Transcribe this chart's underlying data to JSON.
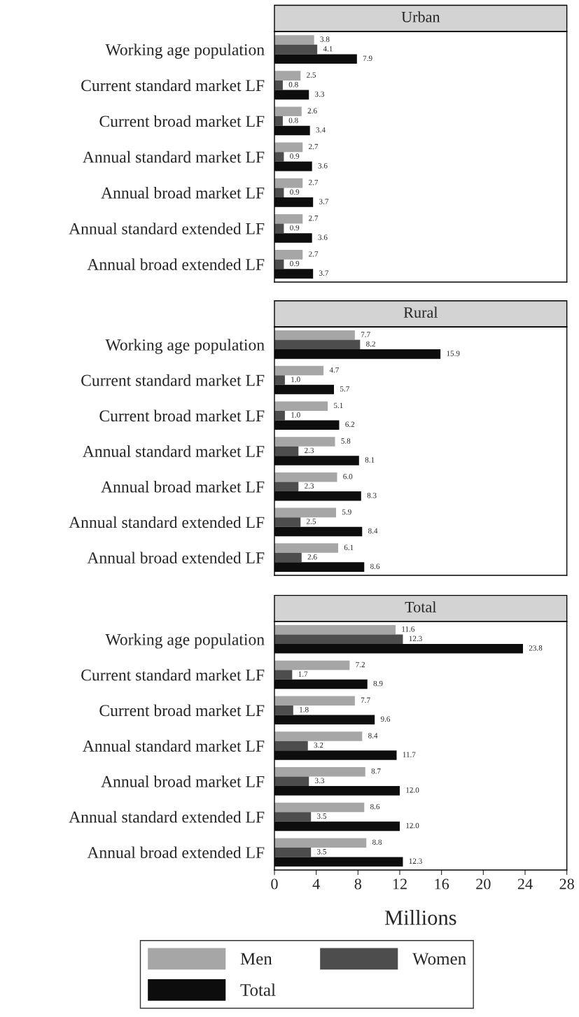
{
  "chart_data": [
    {
      "type": "bar",
      "orientation": "horizontal",
      "title": "Urban",
      "categories": [
        "Working age population",
        "Current standard market LF",
        "Current broad market LF",
        "Annual standard market LF",
        "Annual broad market LF",
        "Annual standard extended LF",
        "Annual broad extended LF"
      ],
      "series": [
        {
          "color": "#a6a6a6",
          "values": [
            3.8,
            2.5,
            2.6,
            2.7,
            2.7,
            2.7,
            2.7
          ],
          "value_labels": [
            "3.8",
            "2.5",
            "2.6",
            "2.7",
            "2.7",
            "2.7",
            "2.7"
          ]
        },
        {
          "color": "#4d4d4d",
          "values": [
            4.1,
            0.8,
            0.8,
            0.9,
            0.9,
            0.9,
            0.9
          ],
          "value_labels": [
            "4.1",
            "0.8",
            "0.8",
            "0.9",
            "0.9",
            "0.9",
            "0.9"
          ]
        },
        {
          "color": "#0d0d0d",
          "values": [
            7.9,
            3.3,
            3.4,
            3.6,
            3.7,
            3.6,
            3.7
          ],
          "value_labels": [
            "7.9",
            "3.3",
            "3.4",
            "3.6",
            "3.7",
            "3.6",
            "3.7"
          ]
        }
      ],
      "xlim": [
        0,
        28
      ],
      "tick_labels": "y"
    },
    {
      "type": "bar",
      "orientation": "horizontal",
      "title": "Rural",
      "categories": [
        "Working age population",
        "Current standard market LF",
        "Current broad market LF",
        "Annual standard market LF",
        "Annual broad market LF",
        "Annual standard extended LF",
        "Annual broad extended LF"
      ],
      "series": [
        {
          "color": "#a6a6a6",
          "values": [
            7.7,
            4.7,
            5.1,
            5.8,
            6.0,
            5.9,
            6.1
          ],
          "value_labels": [
            "7.7",
            "4.7",
            "5.1",
            "5.8",
            "6.0",
            "5.9",
            "6.1"
          ]
        },
        {
          "color": "#4d4d4d",
          "values": [
            8.2,
            1.0,
            1.0,
            2.3,
            2.3,
            2.5,
            2.6
          ],
          "value_labels": [
            "8.2",
            "1.0",
            "1.0",
            "2.3",
            "2.3",
            "2.5",
            "2.6"
          ]
        },
        {
          "color": "#0d0d0d",
          "values": [
            15.9,
            5.7,
            6.2,
            8.1,
            8.3,
            8.4,
            8.6
          ],
          "value_labels": [
            "15.9",
            "5.7",
            "6.2",
            "8.1",
            "8.3",
            "8.4",
            "8.6"
          ]
        }
      ],
      "xlim": [
        0,
        28
      ],
      "tick_labels": "y"
    },
    {
      "type": "bar",
      "orientation": "horizontal",
      "title": "Total",
      "xlabel": "Millions",
      "categories": [
        "Working age population",
        "Current standard market LF",
        "Current broad market LF",
        "Annual standard market LF",
        "Annual broad market LF",
        "Annual standard extended LF",
        "Annual broad extended LF"
      ],
      "series": [
        {
          "name": "Men",
          "color": "#a6a6a6",
          "values": [
            11.6,
            7.2,
            7.7,
            8.4,
            8.7,
            8.6,
            8.8
          ],
          "value_labels": [
            "11.6",
            "7.2",
            "7.7",
            "8.4",
            "8.7",
            "8.6",
            "8.8"
          ]
        },
        {
          "name": "Women",
          "color": "#4d4d4d",
          "values": [
            12.3,
            1.7,
            1.8,
            3.2,
            3.3,
            3.5,
            3.5
          ],
          "value_labels": [
            "12.3",
            "1.7",
            "1.8",
            "3.2",
            "3.3",
            "3.5",
            "3.5"
          ]
        },
        {
          "name": "Total",
          "color": "#0d0d0d",
          "values": [
            23.8,
            8.9,
            9.6,
            11.7,
            12.0,
            12.0,
            12.3
          ],
          "value_labels": [
            "23.8",
            "8.9",
            "9.6",
            "11.7",
            "12.0",
            "12.0",
            "12.3"
          ]
        }
      ],
      "xlim": [
        0,
        28
      ],
      "xticks": [
        0,
        4,
        8,
        12,
        16,
        20,
        24,
        28
      ],
      "legend": "bottom"
    }
  ]
}
